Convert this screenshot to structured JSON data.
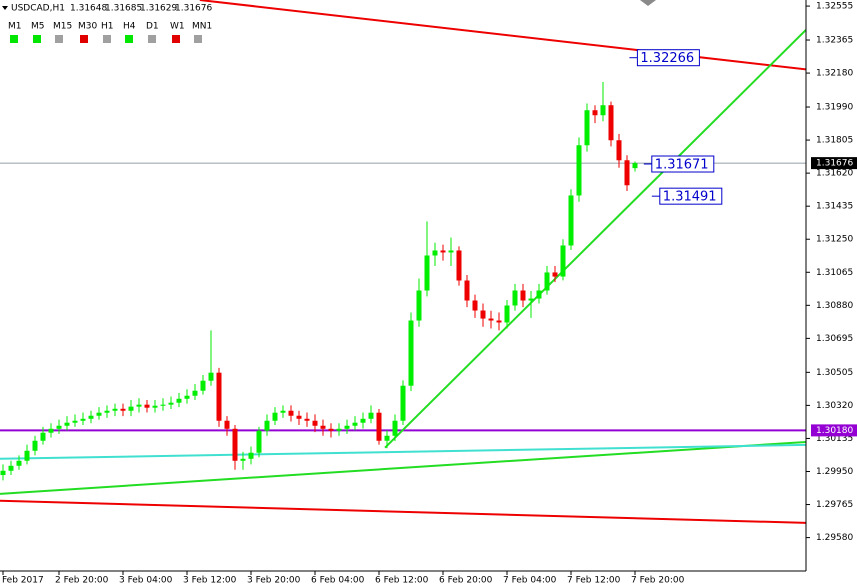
{
  "chart_data": {
    "type": "candlestick",
    "header": {
      "symbol": "USDCAD,H1",
      "ohlc": [
        "1.31648",
        "1.31685",
        "1.31629",
        "1.31676"
      ]
    },
    "timeframes": [
      {
        "label": "M1",
        "color": "#00e600"
      },
      {
        "label": "M5",
        "color": "#00e600"
      },
      {
        "label": "M15",
        "color": "#a0a0a0"
      },
      {
        "label": "M30",
        "color": "#e00000"
      },
      {
        "label": "H1",
        "color": "#a0a0a0"
      },
      {
        "label": "H4",
        "color": "#00e600"
      },
      {
        "label": "D1",
        "color": "#a0a0a0"
      },
      {
        "label": "W1",
        "color": "#e00000"
      },
      {
        "label": "MN1",
        "color": "#a0a0a0"
      }
    ],
    "up_color": "#00ee00",
    "down_color": "#ee0000",
    "candles": {
      "open": [
        1.2993,
        1.29954,
        1.29982,
        1.3001,
        1.30066,
        1.30122,
        1.30167,
        1.30189,
        1.30206,
        1.30223,
        1.30234,
        1.30245,
        1.30262,
        1.30279,
        1.3029,
        1.30301,
        1.3029,
        1.30313,
        1.30324,
        1.30307,
        1.30318,
        1.30324,
        1.30335,
        1.30357,
        1.30374,
        1.30402,
        1.30458,
        1.30503,
        1.30234,
        1.30189,
        1.3001,
        1.30021,
        1.30055,
        1.30178,
        1.30234,
        1.30279,
        1.3029,
        1.30262,
        1.30245,
        1.30234,
        1.30206,
        1.30189,
        1.30178,
        1.30189,
        1.30206,
        1.30223,
        1.30245,
        1.30279,
        1.30122,
        1.3015,
        1.30234,
        1.3043,
        1.30795,
        1.30963,
        1.31159,
        1.31187,
        1.31176,
        1.31187,
        1.31019,
        1.30907,
        1.30851,
        1.30806,
        1.30795,
        1.30784,
        1.30879,
        1.30963,
        1.30907,
        1.30918,
        1.30963,
        1.31064,
        1.31041,
        1.31215,
        1.31495,
        1.31776,
        1.31972,
        1.31944,
        1.32,
        1.31804,
        1.31692,
        1.31648
      ],
      "high": [
        1.2999,
        1.3001,
        1.3004,
        1.301,
        1.3015,
        1.302,
        1.3022,
        1.3024,
        1.3026,
        1.3027,
        1.3028,
        1.3029,
        1.3031,
        1.3032,
        1.3033,
        1.3033,
        1.3035,
        1.3036,
        1.3035,
        1.3035,
        1.3036,
        1.3037,
        1.3039,
        1.3041,
        1.3044,
        1.3049,
        1.3074,
        1.3053,
        1.3026,
        1.3021,
        1.3006,
        1.3009,
        1.302,
        1.3027,
        1.3031,
        1.3032,
        1.3032,
        1.3029,
        1.3028,
        1.3027,
        1.3024,
        1.3022,
        1.3022,
        1.3024,
        1.3026,
        1.3028,
        1.3032,
        1.303,
        1.3018,
        1.3027,
        1.3046,
        1.3084,
        1.3103,
        1.3135,
        1.3123,
        1.3122,
        1.3126,
        1.3121,
        1.3105,
        1.3094,
        1.3089,
        1.3085,
        1.3084,
        1.3091,
        1.31,
        1.31,
        1.3096,
        1.31,
        1.311,
        1.311,
        1.3125,
        1.3153,
        1.3182,
        1.3201,
        1.32,
        1.3213,
        1.3202,
        1.3184,
        1.3172,
        1.31685
      ],
      "low": [
        1.299,
        1.2993,
        1.2996,
        1.2999,
        1.3004,
        1.301,
        1.3014,
        1.3016,
        1.3018,
        1.302,
        1.3021,
        1.3022,
        1.3024,
        1.3025,
        1.3026,
        1.3026,
        1.3026,
        1.3028,
        1.3028,
        1.3028,
        1.3029,
        1.303,
        1.3031,
        1.3033,
        1.3035,
        1.3038,
        1.3043,
        1.302,
        1.3015,
        1.2996,
        1.2996,
        1.2999,
        1.3003,
        1.3015,
        1.3021,
        1.3025,
        1.3023,
        1.3021,
        1.302,
        1.3017,
        1.3015,
        1.3014,
        1.3015,
        1.3016,
        1.3018,
        1.3019,
        1.3022,
        1.301,
        1.3008,
        1.3012,
        1.3021,
        1.304,
        1.3076,
        1.3093,
        1.311,
        1.3113,
        1.311,
        1.3099,
        1.3087,
        1.3081,
        1.3076,
        1.3075,
        1.3074,
        1.3075,
        1.3085,
        1.3087,
        1.3081,
        1.3089,
        1.3094,
        1.3101,
        1.3102,
        1.3119,
        1.3146,
        1.3174,
        1.319,
        1.3191,
        1.3177,
        1.3165,
        1.3152,
        1.31629
      ],
      "close": [
        1.29954,
        1.29982,
        1.3001,
        1.30066,
        1.30122,
        1.30167,
        1.30189,
        1.30206,
        1.30223,
        1.30234,
        1.30245,
        1.30262,
        1.30279,
        1.3029,
        1.30301,
        1.3029,
        1.30313,
        1.30324,
        1.30307,
        1.30318,
        1.30324,
        1.30335,
        1.30357,
        1.30374,
        1.30402,
        1.30458,
        1.30503,
        1.30234,
        1.30189,
        1.3001,
        1.30021,
        1.30055,
        1.30178,
        1.30234,
        1.30279,
        1.3029,
        1.30262,
        1.30245,
        1.30234,
        1.30206,
        1.30189,
        1.30178,
        1.30189,
        1.30206,
        1.30223,
        1.30245,
        1.30279,
        1.30122,
        1.3015,
        1.30234,
        1.3043,
        1.30795,
        1.30963,
        1.31159,
        1.31187,
        1.31176,
        1.31187,
        1.31019,
        1.30907,
        1.30851,
        1.30806,
        1.30795,
        1.30784,
        1.30879,
        1.30963,
        1.30907,
        1.30918,
        1.30963,
        1.31064,
        1.31041,
        1.31215,
        1.31495,
        1.31776,
        1.31972,
        1.31944,
        1.32,
        1.31804,
        1.31692,
        1.31552,
        1.31676
      ]
    },
    "ylim": [
      1.29393,
      1.32589
    ],
    "yticks": [
      1.32555,
      1.32365,
      {
        "value": 1.3218,
        "label": "1.32180"
      },
      {
        "value": 1.3199,
        "label": "1.31990"
      },
      1.31805,
      {
        "value": 1.3162,
        "label": "1.31620"
      },
      1.31435,
      {
        "value": 1.3125,
        "label": "1.31250"
      },
      1.31065,
      {
        "value": 1.3088,
        "label": "1.30880"
      },
      1.30695,
      1.30505,
      {
        "value": 1.3032,
        "label": "1.30320"
      },
      1.30135,
      {
        "value": 1.2995,
        "label": "1.29950"
      },
      1.29765,
      {
        "value": 1.2958,
        "label": "1.29580"
      }
    ],
    "xlabels": [
      {
        "index": 0,
        "label": "Feb 2017"
      },
      {
        "index": 7,
        "label": "2 Feb 20:00"
      },
      {
        "index": 15,
        "label": "3 Feb 04:00"
      },
      {
        "index": 23,
        "label": "3 Feb 12:00"
      },
      {
        "index": 31,
        "label": "3 Feb 20:00"
      },
      {
        "index": 39,
        "label": "6 Feb 04:00"
      },
      {
        "index": 47,
        "label": "6 Feb 12:00"
      },
      {
        "index": 55,
        "label": "6 Feb 20:00"
      },
      {
        "index": 63,
        "label": "7 Feb 04:00"
      },
      {
        "index": 71,
        "label": "7 Feb 12:00"
      },
      {
        "index": 79,
        "label": "7 Feb 20:00"
      }
    ],
    "bid": {
      "value": 1.31676,
      "label": "1.31676",
      "color": "#708090"
    },
    "hline": {
      "value": 1.3018,
      "label": "1.30180",
      "color": "#9400d3"
    },
    "lines": [
      {
        "color": "#ee0000",
        "from": [
          24.6,
          1.32589
        ],
        "to": [
          106.75,
          1.32168
        ]
      },
      {
        "color": "#22dd22",
        "from": [
          47.75,
          1.30083
        ],
        "to": [
          100.6,
          1.32432
        ]
      },
      {
        "color": "#22dd22",
        "from": [
          -0.375,
          1.29825
        ],
        "to": [
          100.6,
          1.30116
        ]
      },
      {
        "color": "#40e0d0",
        "from": [
          -0.375,
          1.30021
        ],
        "to": [
          100.6,
          1.30099
        ]
      },
      {
        "color": "#ee0000",
        "from": [
          -0.375,
          1.29786
        ],
        "to": [
          100.6,
          1.29662
        ]
      }
    ],
    "price_labels": [
      {
        "index": 79.3,
        "value": 1.32266,
        "label": "1.32266"
      },
      {
        "index": 81.1,
        "value": 1.31671,
        "label": "1.31671"
      },
      {
        "index": 82.1,
        "value": 1.31491,
        "label": "1.31491"
      }
    ]
  }
}
